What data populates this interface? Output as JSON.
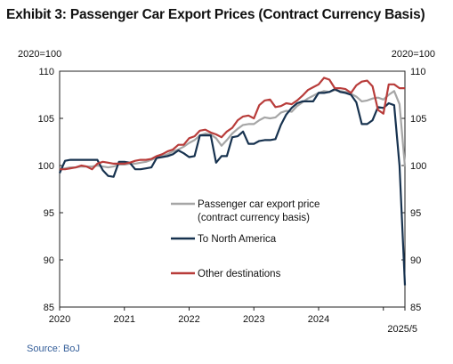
{
  "chart_data": {
    "type": "line",
    "title": "Exhibit 3: Passenger Car Export Prices (Contract Currency Basis)",
    "source": "Source: BoJ",
    "y_unit_left": "2020=100",
    "y_unit_right": "2020=100",
    "ylim": [
      85,
      110
    ],
    "yticks": [
      85,
      90,
      95,
      100,
      105,
      110
    ],
    "xlim": [
      "2020-01",
      "2025-05"
    ],
    "xtick_labels": [
      "2020",
      "2021",
      "2022",
      "2023",
      "2024",
      "2025/5"
    ],
    "grid": false,
    "legend_position": "center-right",
    "series": [
      {
        "name": "Passenger car export price (contract currency basis)",
        "color": "#a6a6a6",
        "points": [
          [
            "2020-01",
            99.6
          ],
          [
            "2020-02",
            99.7
          ],
          [
            "2020-03",
            99.8
          ],
          [
            "2020-04",
            99.8
          ],
          [
            "2020-05",
            99.9
          ],
          [
            "2020-06",
            99.9
          ],
          [
            "2020-07",
            99.9
          ],
          [
            "2020-08",
            100.0
          ],
          [
            "2020-09",
            99.9
          ],
          [
            "2020-10",
            99.8
          ],
          [
            "2020-11",
            99.9
          ],
          [
            "2020-12",
            100.1
          ],
          [
            "2021-01",
            100.1
          ],
          [
            "2021-02",
            100.2
          ],
          [
            "2021-03",
            100.2
          ],
          [
            "2021-04",
            100.3
          ],
          [
            "2021-05",
            100.4
          ],
          [
            "2021-06",
            100.6
          ],
          [
            "2021-07",
            100.8
          ],
          [
            "2021-08",
            101.0
          ],
          [
            "2021-09",
            101.2
          ],
          [
            "2021-10",
            101.5
          ],
          [
            "2021-11",
            101.7
          ],
          [
            "2021-12",
            102.0
          ],
          [
            "2022-01",
            102.4
          ],
          [
            "2022-02",
            102.7
          ],
          [
            "2022-03",
            103.2
          ],
          [
            "2022-04",
            103.4
          ],
          [
            "2022-05",
            103.3
          ],
          [
            "2022-06",
            102.9
          ],
          [
            "2022-07",
            102.1
          ],
          [
            "2022-08",
            102.7
          ],
          [
            "2022-09",
            103.4
          ],
          [
            "2022-10",
            103.9
          ],
          [
            "2022-11",
            104.3
          ],
          [
            "2022-12",
            104.4
          ],
          [
            "2023-01",
            104.4
          ],
          [
            "2023-02",
            104.8
          ],
          [
            "2023-03",
            105.1
          ],
          [
            "2023-04",
            105.0
          ],
          [
            "2023-05",
            105.1
          ],
          [
            "2023-06",
            105.6
          ],
          [
            "2023-07",
            105.8
          ],
          [
            "2023-08",
            105.7
          ],
          [
            "2023-09",
            106.3
          ],
          [
            "2023-10",
            106.7
          ],
          [
            "2023-11",
            107.1
          ],
          [
            "2023-12",
            107.4
          ],
          [
            "2024-01",
            107.7
          ],
          [
            "2024-02",
            107.9
          ],
          [
            "2024-03",
            107.8
          ],
          [
            "2024-04",
            108.0
          ],
          [
            "2024-05",
            107.9
          ],
          [
            "2024-06",
            107.8
          ],
          [
            "2024-07",
            107.6
          ],
          [
            "2024-08",
            107.3
          ],
          [
            "2024-09",
            106.8
          ],
          [
            "2024-10",
            106.9
          ],
          [
            "2024-11",
            107.1
          ],
          [
            "2024-12",
            107.2
          ],
          [
            "2025-01",
            107.0
          ],
          [
            "2025-02",
            107.5
          ],
          [
            "2025-03",
            107.9
          ],
          [
            "2025-04",
            106.5
          ],
          [
            "2025-05",
            99.9
          ]
        ]
      },
      {
        "name": "To North America",
        "color": "#17324f",
        "points": [
          [
            "2020-01",
            99.2
          ],
          [
            "2020-02",
            100.5
          ],
          [
            "2020-03",
            100.6
          ],
          [
            "2020-04",
            100.6
          ],
          [
            "2020-05",
            100.6
          ],
          [
            "2020-06",
            100.6
          ],
          [
            "2020-07",
            100.6
          ],
          [
            "2020-08",
            100.6
          ],
          [
            "2020-09",
            99.5
          ],
          [
            "2020-10",
            98.9
          ],
          [
            "2020-11",
            98.8
          ],
          [
            "2020-12",
            100.4
          ],
          [
            "2021-01",
            100.4
          ],
          [
            "2021-02",
            100.3
          ],
          [
            "2021-03",
            99.6
          ],
          [
            "2021-04",
            99.6
          ],
          [
            "2021-05",
            99.7
          ],
          [
            "2021-06",
            99.8
          ],
          [
            "2021-07",
            100.8
          ],
          [
            "2021-08",
            100.9
          ],
          [
            "2021-09",
            101.0
          ],
          [
            "2021-10",
            101.2
          ],
          [
            "2021-11",
            101.6
          ],
          [
            "2021-12",
            101.3
          ],
          [
            "2022-01",
            100.9
          ],
          [
            "2022-02",
            101.0
          ],
          [
            "2022-03",
            103.2
          ],
          [
            "2022-04",
            103.2
          ],
          [
            "2022-05",
            103.2
          ],
          [
            "2022-06",
            100.3
          ],
          [
            "2022-07",
            101.0
          ],
          [
            "2022-08",
            101.0
          ],
          [
            "2022-09",
            103.0
          ],
          [
            "2022-10",
            103.1
          ],
          [
            "2022-11",
            103.6
          ],
          [
            "2022-12",
            102.3
          ],
          [
            "2023-01",
            102.3
          ],
          [
            "2023-02",
            102.6
          ],
          [
            "2023-03",
            102.7
          ],
          [
            "2023-04",
            102.7
          ],
          [
            "2023-05",
            102.8
          ],
          [
            "2023-06",
            104.3
          ],
          [
            "2023-07",
            105.4
          ],
          [
            "2023-08",
            106.1
          ],
          [
            "2023-09",
            106.6
          ],
          [
            "2023-10",
            106.8
          ],
          [
            "2023-11",
            106.8
          ],
          [
            "2023-12",
            106.8
          ],
          [
            "2024-01",
            107.7
          ],
          [
            "2024-02",
            107.7
          ],
          [
            "2024-03",
            107.8
          ],
          [
            "2024-04",
            108.1
          ],
          [
            "2024-05",
            107.8
          ],
          [
            "2024-06",
            107.7
          ],
          [
            "2024-07",
            107.5
          ],
          [
            "2024-08",
            106.7
          ],
          [
            "2024-09",
            104.4
          ],
          [
            "2024-10",
            104.4
          ],
          [
            "2024-11",
            104.8
          ],
          [
            "2024-12",
            106.2
          ],
          [
            "2025-01",
            106.1
          ],
          [
            "2025-02",
            106.6
          ],
          [
            "2025-03",
            106.4
          ],
          [
            "2025-04",
            100.0
          ],
          [
            "2025-05",
            87.3
          ]
        ]
      },
      {
        "name": "Other destinations",
        "color": "#b83c3a",
        "points": [
          [
            "2020-01",
            99.6
          ],
          [
            "2020-02",
            99.6
          ],
          [
            "2020-03",
            99.7
          ],
          [
            "2020-04",
            99.8
          ],
          [
            "2020-05",
            100.0
          ],
          [
            "2020-06",
            99.9
          ],
          [
            "2020-07",
            99.6
          ],
          [
            "2020-08",
            100.2
          ],
          [
            "2020-09",
            100.4
          ],
          [
            "2020-10",
            100.3
          ],
          [
            "2020-11",
            100.2
          ],
          [
            "2020-12",
            100.2
          ],
          [
            "2021-01",
            100.2
          ],
          [
            "2021-02",
            100.3
          ],
          [
            "2021-03",
            100.5
          ],
          [
            "2021-04",
            100.6
          ],
          [
            "2021-05",
            100.6
          ],
          [
            "2021-06",
            100.7
          ],
          [
            "2021-07",
            101.0
          ],
          [
            "2021-08",
            101.2
          ],
          [
            "2021-09",
            101.5
          ],
          [
            "2021-10",
            101.7
          ],
          [
            "2021-11",
            102.2
          ],
          [
            "2021-12",
            102.2
          ],
          [
            "2022-01",
            102.9
          ],
          [
            "2022-02",
            103.1
          ],
          [
            "2022-03",
            103.7
          ],
          [
            "2022-04",
            103.8
          ],
          [
            "2022-05",
            103.5
          ],
          [
            "2022-06",
            103.3
          ],
          [
            "2022-07",
            103.0
          ],
          [
            "2022-08",
            103.6
          ],
          [
            "2022-09",
            104.0
          ],
          [
            "2022-10",
            104.8
          ],
          [
            "2022-11",
            105.2
          ],
          [
            "2022-12",
            105.3
          ],
          [
            "2023-01",
            105.0
          ],
          [
            "2023-02",
            106.4
          ],
          [
            "2023-03",
            106.9
          ],
          [
            "2023-04",
            107.0
          ],
          [
            "2023-05",
            106.2
          ],
          [
            "2023-06",
            106.3
          ],
          [
            "2023-07",
            106.6
          ],
          [
            "2023-08",
            106.5
          ],
          [
            "2023-09",
            106.9
          ],
          [
            "2023-10",
            107.4
          ],
          [
            "2023-11",
            108.0
          ],
          [
            "2023-12",
            108.3
          ],
          [
            "2024-01",
            108.6
          ],
          [
            "2024-02",
            109.3
          ],
          [
            "2024-03",
            109.1
          ],
          [
            "2024-04",
            108.2
          ],
          [
            "2024-05",
            108.2
          ],
          [
            "2024-06",
            108.1
          ],
          [
            "2024-07",
            107.7
          ],
          [
            "2024-08",
            108.5
          ],
          [
            "2024-09",
            108.9
          ],
          [
            "2024-10",
            109.0
          ],
          [
            "2024-11",
            108.4
          ],
          [
            "2024-12",
            105.9
          ],
          [
            "2025-01",
            105.5
          ],
          [
            "2025-02",
            108.6
          ],
          [
            "2025-03",
            108.6
          ],
          [
            "2025-04",
            108.2
          ],
          [
            "2025-05",
            108.2
          ]
        ]
      }
    ],
    "legend": [
      {
        "label_lines": [
          "Passenger car export price",
          "(contract currency basis)"
        ]
      },
      {
        "label_lines": [
          "To North America"
        ]
      },
      {
        "label_lines": [
          "Other destinations"
        ]
      }
    ]
  }
}
